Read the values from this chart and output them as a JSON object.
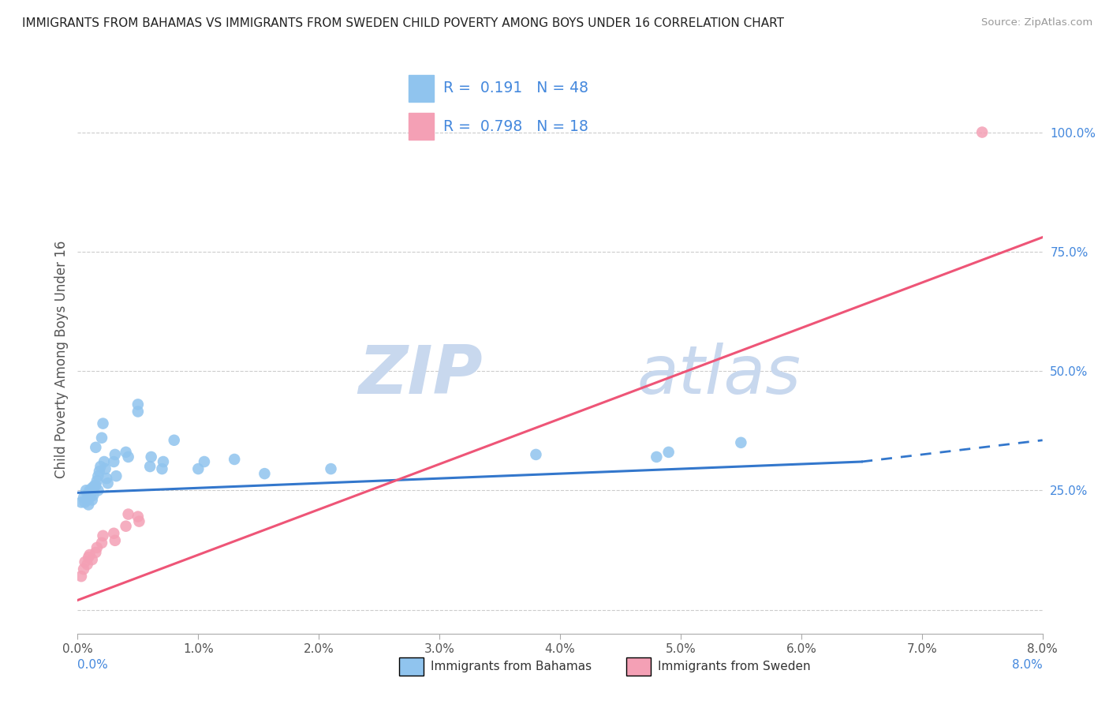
{
  "title": "IMMIGRANTS FROM BAHAMAS VS IMMIGRANTS FROM SWEDEN CHILD POVERTY AMONG BOYS UNDER 16 CORRELATION CHART",
  "source": "Source: ZipAtlas.com",
  "ylabel": "Child Poverty Among Boys Under 16",
  "right_yticks": [
    0.0,
    0.25,
    0.5,
    0.75,
    1.0
  ],
  "right_yticklabels": [
    "",
    "25.0%",
    "50.0%",
    "75.0%",
    "100.0%"
  ],
  "xlim": [
    0.0,
    0.08
  ],
  "ylim": [
    -0.05,
    1.1
  ],
  "legend_r_bahamas": "0.191",
  "legend_n_bahamas": "48",
  "legend_r_sweden": "0.798",
  "legend_n_sweden": "18",
  "color_bahamas": "#90C4EE",
  "color_sweden": "#F4A0B5",
  "color_blue_line": "#3377CC",
  "color_pink_line": "#EE5577",
  "watermark_zip": "ZIP",
  "watermark_atlas": "atlas",
  "watermark_color": "#C8D8EE",
  "scatter_bahamas_x": [
    0.0003,
    0.0005,
    0.0006,
    0.0007,
    0.0008,
    0.0008,
    0.0009,
    0.001,
    0.001,
    0.0011,
    0.0012,
    0.0012,
    0.0013,
    0.0014,
    0.0015,
    0.0015,
    0.0016,
    0.0017,
    0.0017,
    0.0018,
    0.0019,
    0.002,
    0.0021,
    0.0022,
    0.0023,
    0.0024,
    0.0025,
    0.003,
    0.0031,
    0.0032,
    0.004,
    0.0042,
    0.005,
    0.005,
    0.006,
    0.0061,
    0.007,
    0.0071,
    0.008,
    0.01,
    0.0105,
    0.013,
    0.0155,
    0.021,
    0.038,
    0.048,
    0.049,
    0.055
  ],
  "scatter_bahamas_y": [
    0.225,
    0.235,
    0.225,
    0.25,
    0.23,
    0.24,
    0.22,
    0.235,
    0.25,
    0.245,
    0.23,
    0.255,
    0.24,
    0.26,
    0.26,
    0.34,
    0.27,
    0.28,
    0.25,
    0.29,
    0.3,
    0.36,
    0.39,
    0.31,
    0.295,
    0.275,
    0.265,
    0.31,
    0.325,
    0.28,
    0.33,
    0.32,
    0.43,
    0.415,
    0.3,
    0.32,
    0.295,
    0.31,
    0.355,
    0.295,
    0.31,
    0.315,
    0.285,
    0.295,
    0.325,
    0.32,
    0.33,
    0.35
  ],
  "scatter_sweden_x": [
    0.0003,
    0.0005,
    0.0006,
    0.0008,
    0.0009,
    0.001,
    0.0012,
    0.0015,
    0.0016,
    0.002,
    0.0021,
    0.003,
    0.0031,
    0.004,
    0.0042,
    0.005,
    0.0051,
    0.075
  ],
  "scatter_sweden_y": [
    0.07,
    0.085,
    0.1,
    0.095,
    0.11,
    0.115,
    0.105,
    0.12,
    0.13,
    0.14,
    0.155,
    0.16,
    0.145,
    0.175,
    0.2,
    0.195,
    0.185,
    1.0
  ],
  "trend_bahamas_x0": 0.0,
  "trend_bahamas_x1": 0.065,
  "trend_bahamas_y0": 0.245,
  "trend_bahamas_y1": 0.31,
  "trend_bahamas_dash_x0": 0.065,
  "trend_bahamas_dash_x1": 0.08,
  "trend_bahamas_dash_y0": 0.31,
  "trend_bahamas_dash_y1": 0.355,
  "trend_sweden_x0": 0.0,
  "trend_sweden_x1": 0.08,
  "trend_sweden_y0": 0.02,
  "trend_sweden_y1": 0.78,
  "bottom_legend_bahamas": "Immigrants from Bahamas",
  "bottom_legend_sweden": "Immigrants from Sweden"
}
